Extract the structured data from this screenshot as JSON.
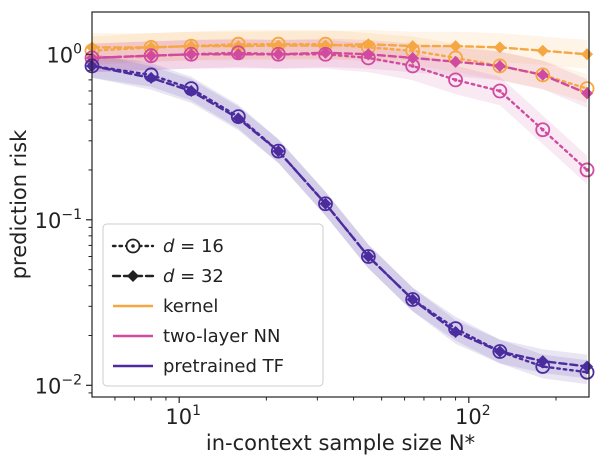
{
  "chart_data": {
    "type": "line",
    "xscale": "log",
    "yscale": "log",
    "xlim": [
      5,
      260
    ],
    "ylim": [
      0.0085,
      1.8
    ],
    "xlabel": "in-context sample size N*",
    "ylabel": "prediction risk",
    "grid": false,
    "legend_position": "lower-left",
    "x_ticks": [
      {
        "value": 10,
        "base": "10",
        "exp": "1"
      },
      {
        "value": 100,
        "base": "10",
        "exp": "2"
      }
    ],
    "y_ticks": [
      {
        "value": 1,
        "base": "10",
        "exp": "0"
      },
      {
        "value": 0.1,
        "base": "10",
        "exp": "−1"
      },
      {
        "value": 0.01,
        "base": "10",
        "exp": "−2"
      }
    ],
    "legend": {
      "styles": [
        {
          "label_prefix": "d",
          "label_suffix": " = 16",
          "line": "dotted",
          "marker": "open-circle"
        },
        {
          "label_prefix": "d",
          "label_suffix": " = 32",
          "line": "dashed",
          "marker": "diamond"
        }
      ],
      "methods": [
        {
          "label": "kernel",
          "color": "#f5a742"
        },
        {
          "label": "two-layer NN",
          "color": "#d04aa0"
        },
        {
          "label": "pretrained TF",
          "color": "#4b2c9f"
        }
      ]
    },
    "series": [
      {
        "method": "kernel",
        "d": 16,
        "color": "#f5a742",
        "x": [
          5,
          8,
          11,
          16,
          22,
          32,
          45,
          64,
          90,
          128,
          180,
          256
        ],
        "y": [
          1.05,
          1.1,
          1.12,
          1.15,
          1.15,
          1.15,
          1.1,
          1.05,
          0.95,
          0.85,
          0.75,
          0.62
        ]
      },
      {
        "method": "kernel",
        "d": 32,
        "color": "#f5a742",
        "x": [
          5,
          8,
          11,
          16,
          22,
          32,
          45,
          64,
          90,
          128,
          180,
          256
        ],
        "y": [
          1.1,
          1.1,
          1.12,
          1.12,
          1.13,
          1.13,
          1.15,
          1.12,
          1.12,
          1.1,
          1.05,
          1.0
        ]
      },
      {
        "method": "two-layer NN",
        "d": 16,
        "color": "#d04aa0",
        "x": [
          5,
          8,
          11,
          16,
          22,
          32,
          45,
          64,
          90,
          128,
          180,
          256
        ],
        "y": [
          0.95,
          0.98,
          1.0,
          1.02,
          1.0,
          1.0,
          0.95,
          0.85,
          0.7,
          0.6,
          0.35,
          0.2
        ]
      },
      {
        "method": "two-layer NN",
        "d": 32,
        "color": "#d04aa0",
        "x": [
          5,
          8,
          11,
          16,
          22,
          32,
          45,
          64,
          90,
          128,
          180,
          256
        ],
        "y": [
          0.95,
          0.98,
          1.0,
          1.0,
          1.0,
          1.02,
          1.0,
          0.95,
          0.9,
          0.85,
          0.75,
          0.58
        ]
      },
      {
        "method": "pretrained TF",
        "d": 16,
        "color": "#4b2c9f",
        "x": [
          5,
          8,
          11,
          16,
          22,
          32,
          45,
          64,
          90,
          128,
          180,
          256
        ],
        "y": [
          0.85,
          0.75,
          0.62,
          0.42,
          0.26,
          0.125,
          0.06,
          0.033,
          0.022,
          0.016,
          0.013,
          0.012
        ]
      },
      {
        "method": "pretrained TF",
        "d": 32,
        "color": "#4b2c9f",
        "x": [
          5,
          8,
          11,
          16,
          22,
          32,
          45,
          64,
          90,
          128,
          180,
          256
        ],
        "y": [
          0.85,
          0.72,
          0.6,
          0.41,
          0.26,
          0.125,
          0.06,
          0.033,
          0.021,
          0.016,
          0.014,
          0.013
        ]
      }
    ]
  }
}
